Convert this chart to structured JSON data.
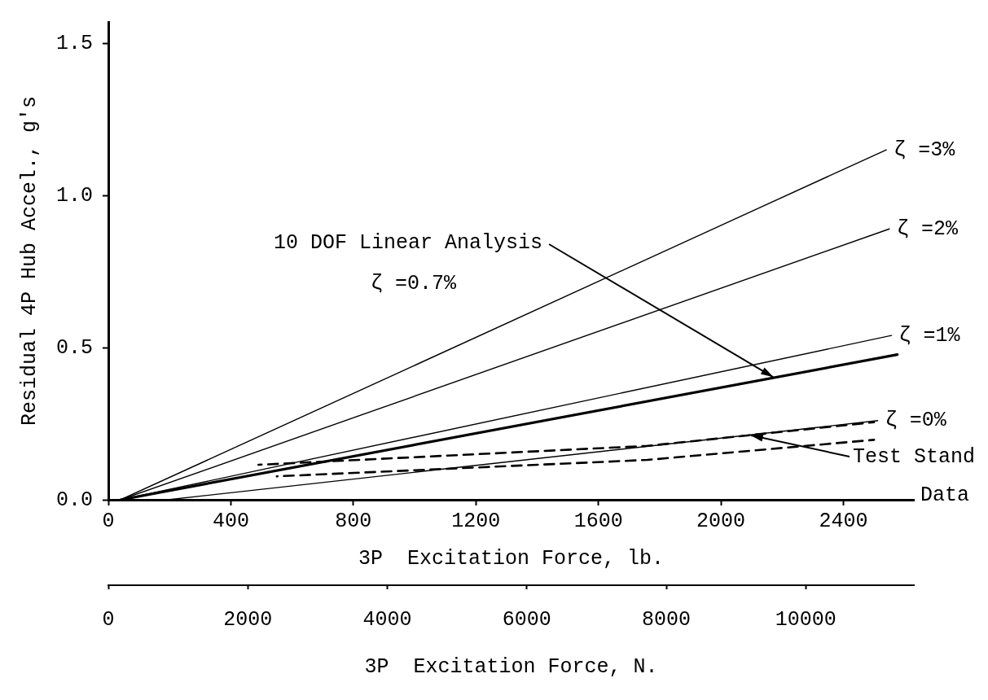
{
  "chart_data": {
    "type": "line",
    "xlabel": "3P  Excitation Force, lb.",
    "x2label": "3P  Excitation Force, N.",
    "ylabel": "Residual 4P Hub Accel., g's",
    "xlim": [
      0,
      2630
    ],
    "xticks": [
      0,
      400,
      800,
      1200,
      1600,
      2000,
      2400
    ],
    "x2lim": [
      0,
      11550
    ],
    "x2ticks": [
      0,
      2000,
      4000,
      6000,
      8000,
      10000
    ],
    "ylim": [
      0,
      1.57
    ],
    "yticks": [
      {
        "value": 0,
        "label": "0.0"
      },
      {
        "value": 0.5,
        "label": "0.5"
      },
      {
        "value": 1,
        "label": "1.0"
      },
      {
        "value": 1.5,
        "label": "1.5"
      }
    ],
    "grid": false,
    "legend": false,
    "marker": "none",
    "series": [
      {
        "name": "ζ =3%",
        "color": "#000000",
        "x": [
          40,
          2540
        ],
        "values": [
          0,
          1.15
        ]
      },
      {
        "name": "ζ =2%",
        "color": "#000000",
        "x": [
          40,
          2550
        ],
        "values": [
          0,
          0.89
        ]
      },
      {
        "name": "ζ =1%",
        "color": "#000000",
        "x": [
          40,
          2557
        ],
        "values": [
          0,
          0.54
        ]
      },
      {
        "color": "#000000",
        "x": [
          40,
          2576
        ],
        "values": [
          0,
          0.477
        ]
      },
      {
        "name": "ζ =0%",
        "color": "#000000",
        "x": [
          194,
          2512
        ],
        "values": [
          0,
          0.26
        ]
      },
      {
        "color": "#000000",
        "x": [
          490,
          1760,
          2500
        ],
        "values": [
          0.115,
          0.177,
          0.255
        ],
        "line_style": "dashed"
      },
      {
        "color": "#000000",
        "x": [
          550,
          1760,
          2500
        ],
        "values": [
          0.077,
          0.131,
          0.197
        ],
        "line_style": "dashed"
      }
    ],
    "annotations": [
      {
        "text": "10 DOF Linear Analysis",
        "x": 2171,
        "y": 0.403
      },
      "ζ =0.7%",
      {
        "text": "Test Stand Data",
        "x": 2097,
        "y": 0.212
      }
    ]
  }
}
